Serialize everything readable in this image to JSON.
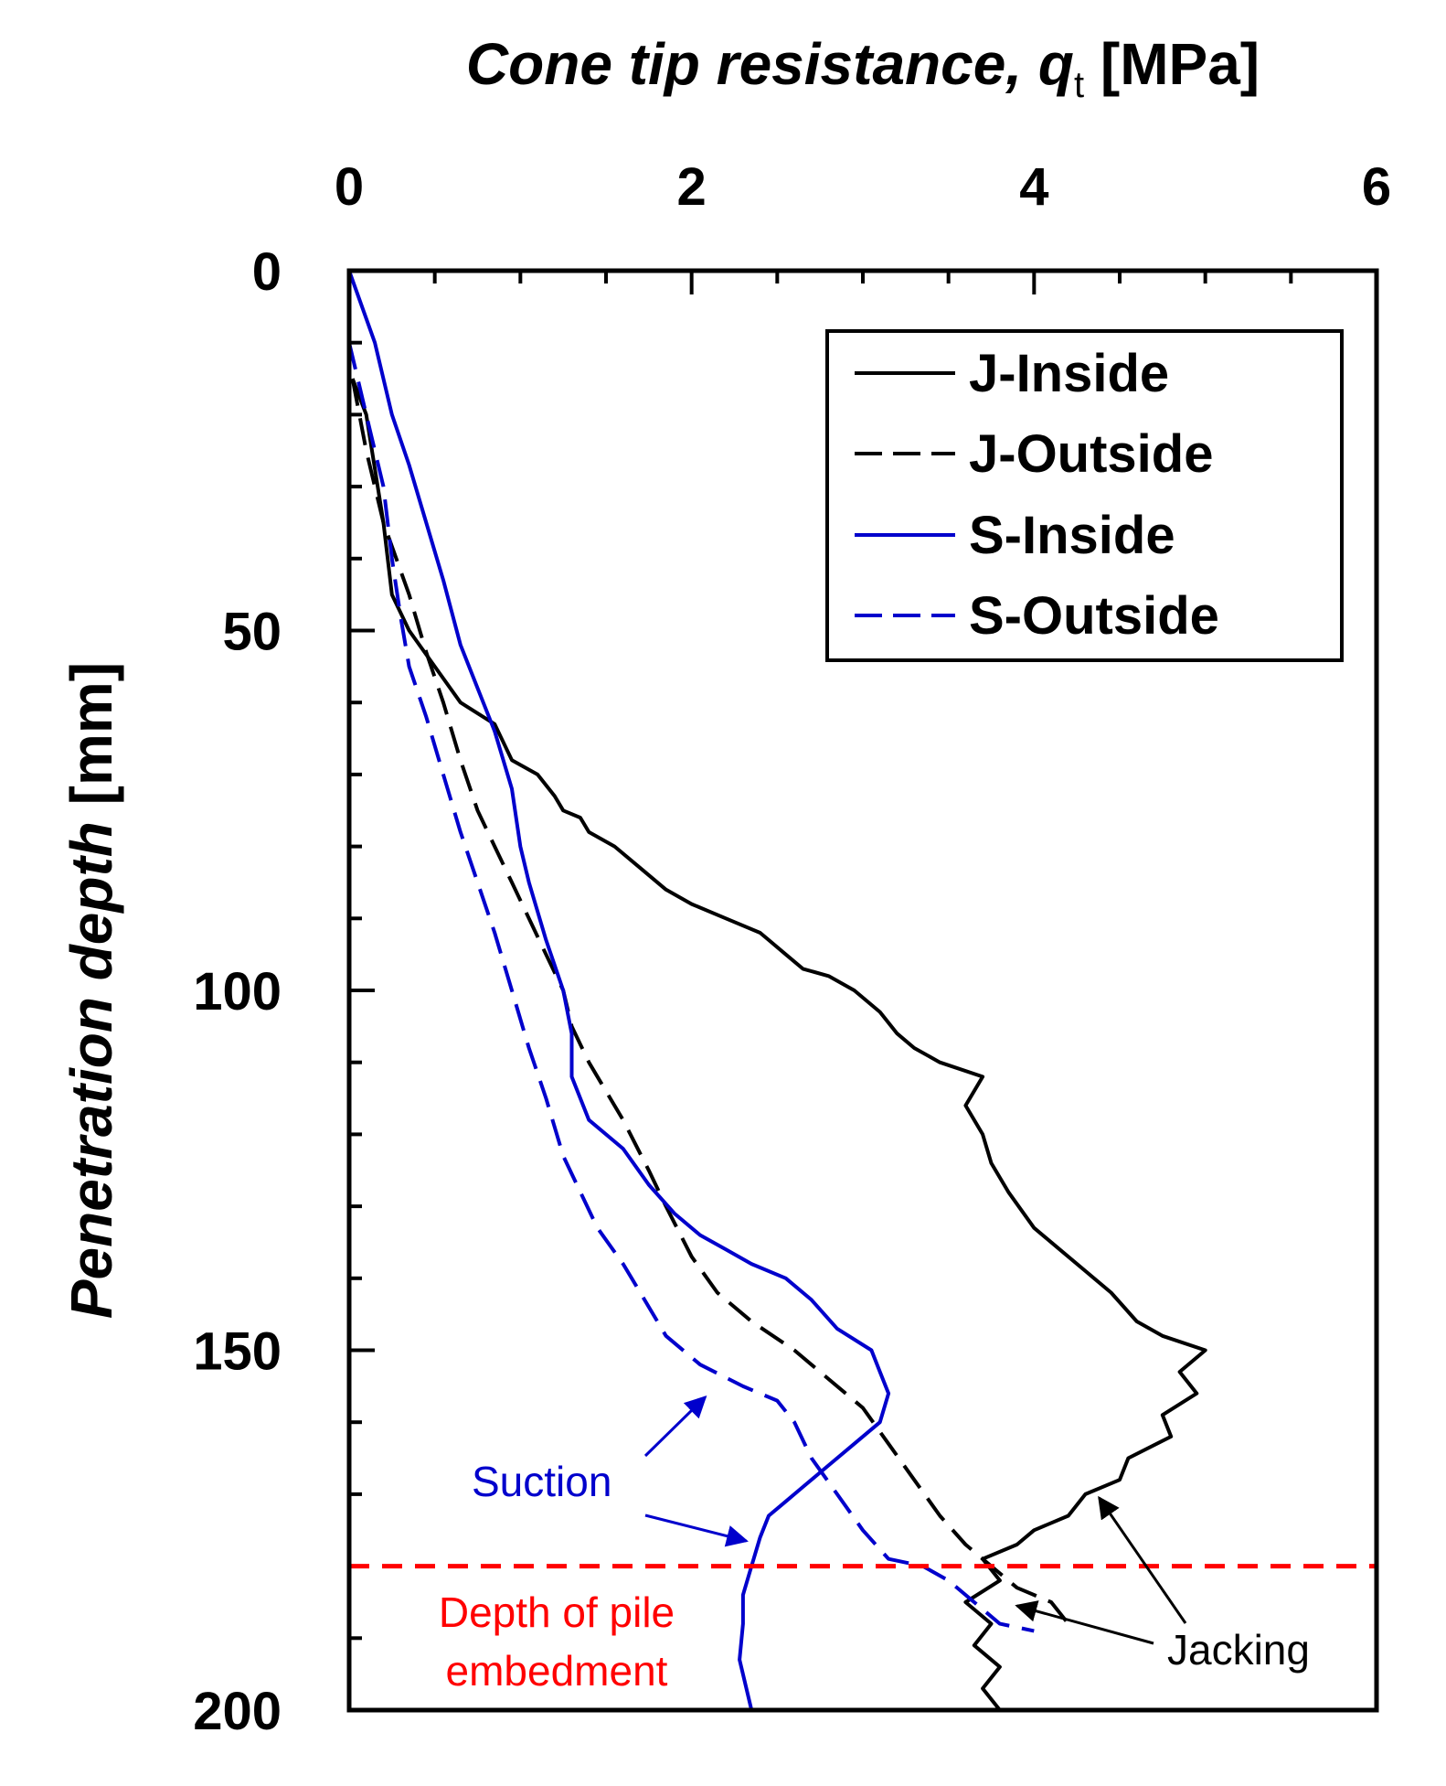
{
  "chart_data": {
    "type": "line",
    "orientation": "depth-profile",
    "title": "",
    "xlabel": {
      "main": "Cone tip resistance, ",
      "symbol": "q",
      "subscript": "t",
      "unit": " [MPa]"
    },
    "ylabel": {
      "main": "Penetration depth",
      "unit": " [mm]"
    },
    "xlim": [
      0,
      6
    ],
    "ylim": [
      0,
      200
    ],
    "y_inverted": true,
    "x_axis_position": "top",
    "x_ticks": [
      0,
      2,
      4,
      6
    ],
    "x_tick_labels": [
      "0",
      "2",
      "4",
      "6"
    ],
    "x_minor_step": 0.5,
    "y_ticks": [
      0,
      50,
      100,
      150,
      200
    ],
    "y_tick_labels": [
      "0",
      "50",
      "100",
      "150",
      "200"
    ],
    "y_minor_step": 10,
    "grid": false,
    "legend_position": "top-right",
    "colors": {
      "black": "#000000",
      "blue": "#0000cc",
      "red": "#ff0000"
    },
    "series": [
      {
        "name": "J-Inside",
        "color": "#000000",
        "dash": "solid",
        "points": [
          [
            0.02,
            15
          ],
          [
            0.1,
            20
          ],
          [
            0.2,
            35
          ],
          [
            0.25,
            45
          ],
          [
            0.35,
            50
          ],
          [
            0.5,
            55
          ],
          [
            0.65,
            60
          ],
          [
            0.85,
            63
          ],
          [
            0.95,
            68
          ],
          [
            1.1,
            70
          ],
          [
            1.2,
            73
          ],
          [
            1.25,
            75
          ],
          [
            1.35,
            76
          ],
          [
            1.4,
            78
          ],
          [
            1.55,
            80
          ],
          [
            1.7,
            83
          ],
          [
            1.85,
            86
          ],
          [
            2.0,
            88
          ],
          [
            2.2,
            90
          ],
          [
            2.4,
            92
          ],
          [
            2.45,
            93
          ],
          [
            2.55,
            95
          ],
          [
            2.65,
            97
          ],
          [
            2.8,
            98
          ],
          [
            2.95,
            100
          ],
          [
            3.1,
            103
          ],
          [
            3.2,
            106
          ],
          [
            3.3,
            108
          ],
          [
            3.45,
            110
          ],
          [
            3.7,
            112
          ],
          [
            3.6,
            116
          ],
          [
            3.7,
            120
          ],
          [
            3.75,
            124
          ],
          [
            3.85,
            128
          ],
          [
            4.0,
            133
          ],
          [
            4.15,
            136
          ],
          [
            4.3,
            139
          ],
          [
            4.45,
            142
          ],
          [
            4.6,
            146
          ],
          [
            4.75,
            148
          ],
          [
            5.0,
            150
          ],
          [
            4.85,
            153
          ],
          [
            4.95,
            156
          ],
          [
            4.75,
            159
          ],
          [
            4.8,
            162
          ],
          [
            4.55,
            165
          ],
          [
            4.5,
            168
          ],
          [
            4.3,
            170
          ],
          [
            4.2,
            173
          ],
          [
            4.0,
            175
          ],
          [
            3.9,
            177
          ],
          [
            3.7,
            179
          ],
          [
            3.8,
            182
          ],
          [
            3.6,
            185
          ],
          [
            3.75,
            188
          ],
          [
            3.65,
            191
          ],
          [
            3.8,
            194
          ],
          [
            3.7,
            197
          ],
          [
            3.8,
            200
          ]
        ]
      },
      {
        "name": "J-Outside",
        "color": "#000000",
        "dash": "dashed",
        "points": [
          [
            0.02,
            15
          ],
          [
            0.1,
            25
          ],
          [
            0.2,
            35
          ],
          [
            0.35,
            45
          ],
          [
            0.45,
            53
          ],
          [
            0.55,
            60
          ],
          [
            0.65,
            68
          ],
          [
            0.75,
            75
          ],
          [
            0.85,
            80
          ],
          [
            0.95,
            85
          ],
          [
            1.05,
            90
          ],
          [
            1.15,
            95
          ],
          [
            1.25,
            100
          ],
          [
            1.3,
            105
          ],
          [
            1.4,
            110
          ],
          [
            1.6,
            118
          ],
          [
            1.75,
            125
          ],
          [
            1.85,
            130
          ],
          [
            2.0,
            137
          ],
          [
            2.15,
            142
          ],
          [
            2.35,
            146
          ],
          [
            2.6,
            150
          ],
          [
            2.8,
            154
          ],
          [
            3.0,
            158
          ],
          [
            3.15,
            163
          ],
          [
            3.3,
            168
          ],
          [
            3.45,
            173
          ],
          [
            3.6,
            177
          ],
          [
            3.75,
            180
          ],
          [
            3.9,
            183
          ],
          [
            4.1,
            185
          ],
          [
            4.2,
            188
          ]
        ]
      },
      {
        "name": "S-Inside",
        "color": "#0000cc",
        "dash": "solid",
        "points": [
          [
            0.0,
            0
          ],
          [
            0.15,
            10
          ],
          [
            0.25,
            20
          ],
          [
            0.35,
            27
          ],
          [
            0.45,
            35
          ],
          [
            0.55,
            43
          ],
          [
            0.65,
            52
          ],
          [
            0.75,
            58
          ],
          [
            0.85,
            64
          ],
          [
            0.95,
            72
          ],
          [
            1.0,
            80
          ],
          [
            1.05,
            85
          ],
          [
            1.15,
            93
          ],
          [
            1.25,
            100
          ],
          [
            1.3,
            106
          ],
          [
            1.3,
            112
          ],
          [
            1.4,
            118
          ],
          [
            1.6,
            122
          ],
          [
            1.75,
            127
          ],
          [
            1.9,
            131
          ],
          [
            2.05,
            134
          ],
          [
            2.2,
            136
          ],
          [
            2.35,
            138
          ],
          [
            2.55,
            140
          ],
          [
            2.7,
            143
          ],
          [
            2.85,
            147
          ],
          [
            3.05,
            150
          ],
          [
            3.1,
            153
          ],
          [
            3.15,
            156
          ],
          [
            3.1,
            160
          ],
          [
            2.95,
            163
          ],
          [
            2.8,
            166
          ],
          [
            2.65,
            169
          ],
          [
            2.55,
            171
          ],
          [
            2.45,
            173
          ],
          [
            2.4,
            176
          ],
          [
            2.35,
            180
          ],
          [
            2.3,
            184
          ],
          [
            2.3,
            188
          ],
          [
            2.28,
            193
          ],
          [
            2.35,
            200
          ]
        ]
      },
      {
        "name": "S-Outside",
        "color": "#0000cc",
        "dash": "dashed",
        "points": [
          [
            0.0,
            10
          ],
          [
            0.1,
            20
          ],
          [
            0.2,
            30
          ],
          [
            0.25,
            40
          ],
          [
            0.3,
            48
          ],
          [
            0.35,
            55
          ],
          [
            0.45,
            62
          ],
          [
            0.55,
            70
          ],
          [
            0.65,
            78
          ],
          [
            0.75,
            85
          ],
          [
            0.85,
            92
          ],
          [
            0.95,
            100
          ],
          [
            1.05,
            108
          ],
          [
            1.15,
            115
          ],
          [
            1.25,
            123
          ],
          [
            1.35,
            128
          ],
          [
            1.45,
            133
          ],
          [
            1.6,
            138
          ],
          [
            1.7,
            142
          ],
          [
            1.85,
            148
          ],
          [
            2.05,
            152
          ],
          [
            2.3,
            155
          ],
          [
            2.5,
            157
          ],
          [
            2.6,
            160
          ],
          [
            2.7,
            165
          ],
          [
            2.85,
            170
          ],
          [
            3.0,
            175
          ],
          [
            3.15,
            179
          ],
          [
            3.35,
            180
          ],
          [
            3.5,
            182
          ],
          [
            3.65,
            185
          ],
          [
            3.8,
            188
          ],
          [
            4.0,
            189
          ]
        ]
      }
    ],
    "embedment_line": {
      "depth": 180,
      "color": "#ff0000",
      "dash": "dashed"
    },
    "annotations": {
      "suction": "Suction",
      "jacking": "Jacking",
      "embedment_line1": "Depth of pile",
      "embedment_line2": "embedment"
    },
    "annotation_arrows": {
      "suction": [
        {
          "to": [
            2.08,
            156.5
          ]
        },
        {
          "to": [
            2.32,
            176.5
          ]
        }
      ],
      "jacking": [
        {
          "to": [
            4.38,
            170.5
          ]
        },
        {
          "to": [
            3.9,
            185.5
          ]
        }
      ]
    }
  }
}
